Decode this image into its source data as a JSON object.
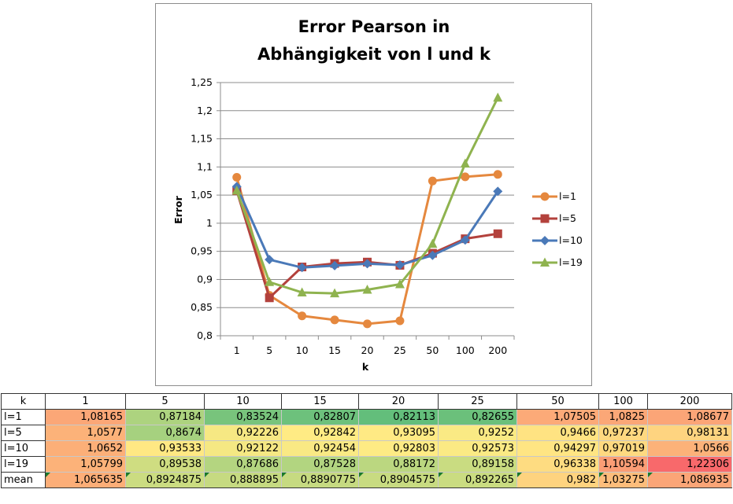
{
  "colors": {
    "l1": "#E5883E",
    "l5": "#B3413C",
    "l10": "#4A79B8",
    "l19": "#8FB34F",
    "heat_low": "#63BE7B",
    "heat_mid": "#FFEB84",
    "heat_high": "#F8696B"
  },
  "chart_data": {
    "type": "line",
    "title": [
      "Error Pearson in",
      "Abhängigkeit von l und k"
    ],
    "xlabel": "k",
    "ylabel": "Error",
    "categories": [
      "1",
      "5",
      "10",
      "15",
      "20",
      "25",
      "50",
      "100",
      "200"
    ],
    "ylim": [
      0.8,
      1.25
    ],
    "yticks": [
      "0,8",
      "0,85",
      "0,9",
      "0,95",
      "1",
      "1,05",
      "1,1",
      "1,15",
      "1,2",
      "1,25"
    ],
    "grid": true,
    "legend_position": "right",
    "series": [
      {
        "name": "l=1",
        "marker": "circle",
        "color": "#E5883E",
        "values": [
          1.08165,
          0.87184,
          0.83524,
          0.82807,
          0.82113,
          0.82655,
          1.07505,
          1.0825,
          1.08677
        ]
      },
      {
        "name": "l=5",
        "marker": "square",
        "color": "#B3413C",
        "values": [
          1.0577,
          0.8674,
          0.92226,
          0.92842,
          0.93095,
          0.9252,
          0.9466,
          0.97237,
          0.98131
        ]
      },
      {
        "name": "l=10",
        "marker": "diamond",
        "color": "#4A79B8",
        "values": [
          1.0652,
          0.93533,
          0.92122,
          0.92454,
          0.92803,
          0.92573,
          0.94297,
          0.97019,
          1.0566
        ]
      },
      {
        "name": "l=19",
        "marker": "triangle",
        "color": "#8FB34F",
        "values": [
          1.05799,
          0.89538,
          0.87686,
          0.87528,
          0.88172,
          0.89158,
          0.96338,
          1.10594,
          1.22306
        ]
      }
    ]
  },
  "table": {
    "header": [
      "k",
      "1",
      "5",
      "10",
      "15",
      "20",
      "25",
      "50",
      "100",
      "200"
    ],
    "rows": [
      {
        "label": "l=1",
        "cells": [
          "1,08165",
          "0,87184",
          "0,83524",
          "0,82807",
          "0,82113",
          "0,82655",
          "1,07505",
          "1,0825",
          "1,08677"
        ]
      },
      {
        "label": "l=5",
        "cells": [
          "1,0577",
          "0,8674",
          "0,92226",
          "0,92842",
          "0,93095",
          "0,9252",
          "0,9466",
          "0,97237",
          "0,98131"
        ]
      },
      {
        "label": "l=10",
        "cells": [
          "1,0652",
          "0,93533",
          "0,92122",
          "0,92454",
          "0,92803",
          "0,92573",
          "0,94297",
          "0,97019",
          "1,0566"
        ]
      },
      {
        "label": "l=19",
        "cells": [
          "1,05799",
          "0,89538",
          "0,87686",
          "0,87528",
          "0,88172",
          "0,89158",
          "0,96338",
          "1,10594",
          "1,22306"
        ]
      },
      {
        "label": "mean",
        "cells": [
          "1,065635",
          "0,8924875",
          "0,888895",
          "0,8890775",
          "0,8904575",
          "0,892265",
          "0,982",
          "1,03275",
          "1,086935"
        ]
      }
    ]
  }
}
